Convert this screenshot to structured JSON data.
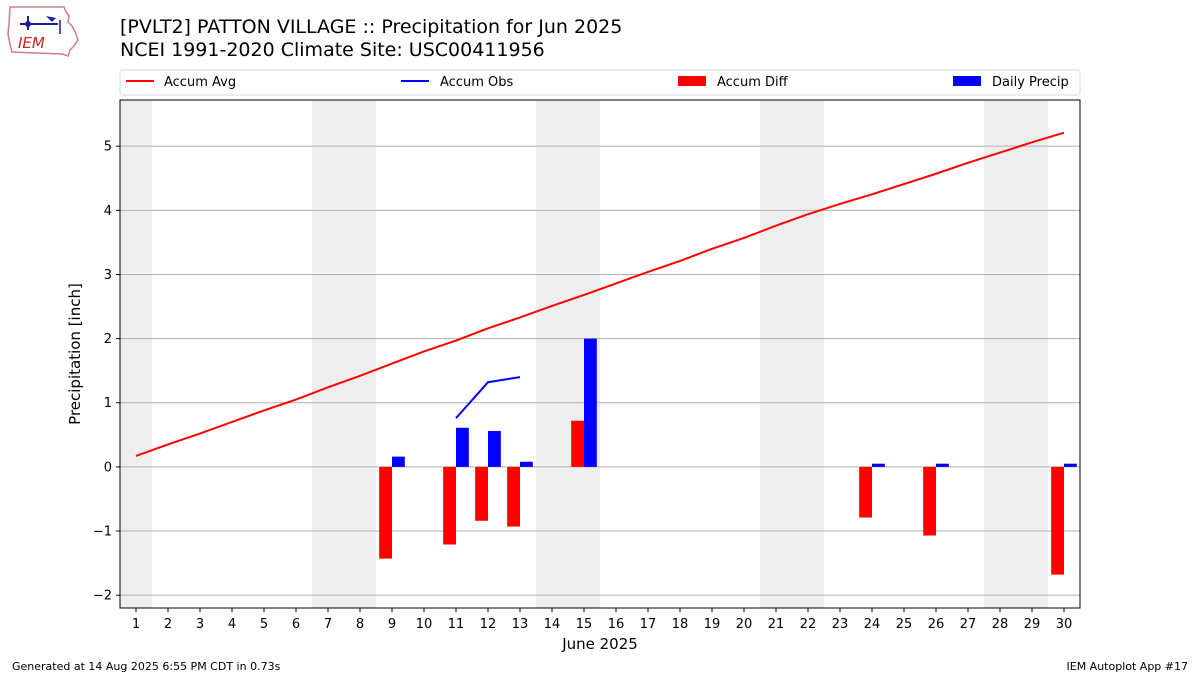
{
  "header": {
    "logo_text": "IEM",
    "title_line1": "[PVLT2] PATTON VILLAGE :: Precipitation for Jun 2025",
    "title_line2": "NCEI 1991-2020 Climate Site: USC00411956"
  },
  "footer": {
    "generated": "Generated at 14 Aug 2025 6:55 PM CDT in 0.73s",
    "app": "IEM Autoplot App #17"
  },
  "colors": {
    "accum_avg": "#ff0000",
    "accum_obs": "#0000ff",
    "accum_diff": "#ff0000",
    "daily_precip": "#0000ff",
    "weekend_band": "#eeeeee",
    "grid": "#b0b0b0"
  },
  "chart_data": {
    "type": "bar",
    "title": "[PVLT2] PATTON VILLAGE :: Precipitation for Jun 2025",
    "xlabel": "June 2025",
    "ylabel": "Precipitation [inch]",
    "xlim": [
      0.5,
      30.5
    ],
    "ylim": [
      -2.2,
      5.72
    ],
    "yticks": [
      -2,
      -1,
      0,
      1,
      2,
      3,
      4,
      5
    ],
    "ytick_labels": [
      "−2",
      "−1",
      "0",
      "1",
      "2",
      "3",
      "4",
      "5"
    ],
    "x": [
      1,
      2,
      3,
      4,
      5,
      6,
      7,
      8,
      9,
      10,
      11,
      12,
      13,
      14,
      15,
      16,
      17,
      18,
      19,
      20,
      21,
      22,
      23,
      24,
      25,
      26,
      27,
      28,
      29,
      30
    ],
    "xtick_labels": [
      "1",
      "2",
      "3",
      "4",
      "5",
      "6",
      "7",
      "8",
      "9",
      "10",
      "11",
      "12",
      "13",
      "14",
      "15",
      "16",
      "17",
      "18",
      "19",
      "20",
      "21",
      "22",
      "23",
      "24",
      "25",
      "26",
      "27",
      "28",
      "29",
      "30"
    ],
    "weekend_days": [
      1,
      7,
      8,
      14,
      15,
      21,
      22,
      28,
      29
    ],
    "grid": "y",
    "legend_placement": "top",
    "legend": [
      "Accum Avg",
      "Accum Obs",
      "Accum Diff",
      "Daily Precip"
    ],
    "series": [
      {
        "name": "Accum Avg",
        "type": "line",
        "x": [
          1,
          2,
          3,
          4,
          5,
          6,
          7,
          8,
          9,
          10,
          11,
          12,
          13,
          14,
          15,
          16,
          17,
          18,
          19,
          20,
          21,
          22,
          23,
          24,
          25,
          26,
          27,
          28,
          29,
          30
        ],
        "values": [
          0.17,
          0.35,
          0.52,
          0.7,
          0.88,
          1.05,
          1.24,
          1.42,
          1.61,
          1.8,
          1.97,
          2.16,
          2.33,
          2.51,
          2.68,
          2.86,
          3.04,
          3.21,
          3.4,
          3.57,
          3.76,
          3.94,
          4.1,
          4.25,
          4.41,
          4.57,
          4.74,
          4.9,
          5.06,
          5.21
        ]
      },
      {
        "name": "Accum Obs",
        "type": "line",
        "x": [
          11,
          12,
          13
        ],
        "values": [
          0.76,
          1.32,
          1.4
        ]
      },
      {
        "name": "Accum Diff",
        "type": "bar",
        "x": [
          9,
          11,
          12,
          13,
          15,
          24,
          26,
          30
        ],
        "values": [
          -1.43,
          -1.21,
          -0.84,
          -0.93,
          0.72,
          -0.79,
          -1.07,
          -1.68
        ]
      },
      {
        "name": "Daily Precip",
        "type": "bar",
        "x": [
          9,
          11,
          12,
          13,
          15,
          24,
          26,
          30
        ],
        "values": [
          0.16,
          0.61,
          0.56,
          0.08,
          2.0,
          0.05,
          0.05,
          0.05
        ]
      }
    ]
  }
}
